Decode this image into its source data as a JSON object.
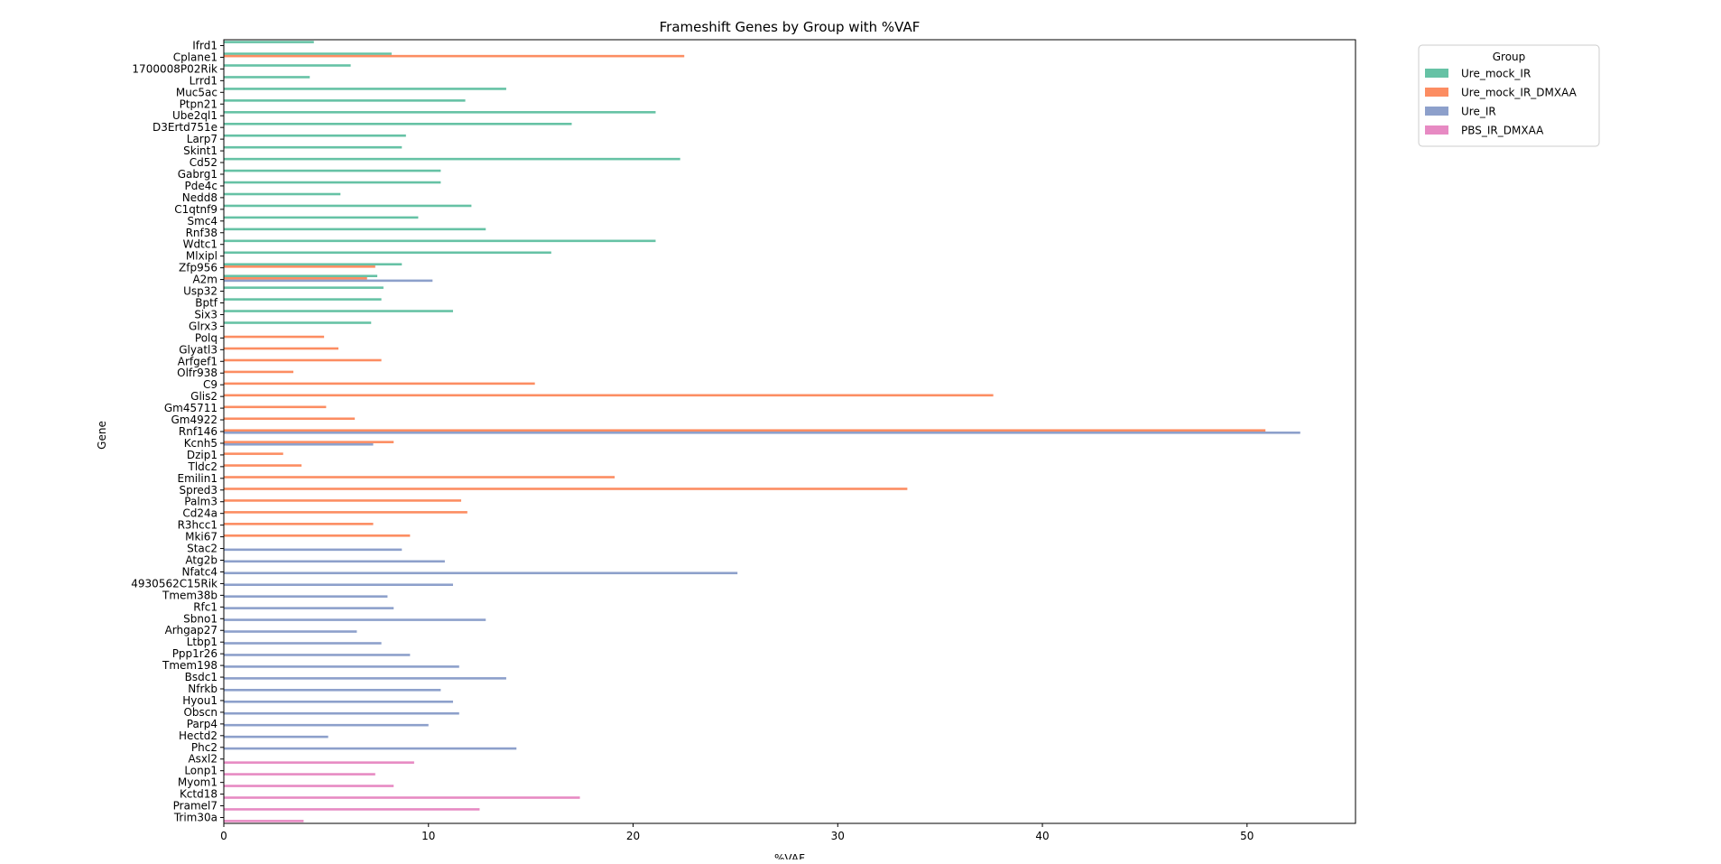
{
  "chart_data": {
    "type": "bar",
    "orientation": "horizontal",
    "title": "Frameshift Genes by Group with %VAF",
    "xlabel": "%VAF",
    "ylabel": "Gene",
    "xlim": [
      0,
      55.3
    ],
    "xticks": [
      0,
      10,
      20,
      30,
      40,
      50
    ],
    "grid": false,
    "legend": {
      "title": "Group",
      "position": "outside-top-right"
    },
    "groups": [
      {
        "name": "Ure_mock_IR",
        "color": "#66c2a5"
      },
      {
        "name": "Ure_mock_IR_DMXAA",
        "color": "#fc8d62"
      },
      {
        "name": "Ure_IR",
        "color": "#8da0cb"
      },
      {
        "name": "PBS_IR_DMXAA",
        "color": "#e78ac3"
      }
    ],
    "genes": [
      "Ifrd1",
      "Cplane1",
      "1700008P02Rik",
      "Lrrd1",
      "Muc5ac",
      "Ptpn21",
      "Ube2ql1",
      "D3Ertd751e",
      "Larp7",
      "Skint1",
      "Cd52",
      "Gabrg1",
      "Pde4c",
      "Nedd8",
      "C1qtnf9",
      "Smc4",
      "Rnf38",
      "Wdtc1",
      "Mlxipl",
      "Zfp956",
      "A2m",
      "Usp32",
      "Bptf",
      "Six3",
      "Glrx3",
      "Polq",
      "Glyatl3",
      "Arfgef1",
      "Olfr938",
      "C9",
      "Glis2",
      "Gm45711",
      "Gm4922",
      "Rnf146",
      "Kcnh5",
      "Dzip1",
      "Tldc2",
      "Emilin1",
      "Spred3",
      "Palm3",
      "Cd24a",
      "R3hcc1",
      "Mki67",
      "Stac2",
      "Atg2b",
      "Nfatc4",
      "4930562C15Rik",
      "Tmem38b",
      "Rfc1",
      "Sbno1",
      "Arhgap27",
      "Ltbp1",
      "Ppp1r26",
      "Tmem198",
      "Bsdc1",
      "Nfrkb",
      "Hyou1",
      "Obscn",
      "Parp4",
      "Hectd2",
      "Phc2",
      "Asxl2",
      "Lonp1",
      "Myom1",
      "Kctd18",
      "Pramel7",
      "Trim30a"
    ],
    "series": [
      {
        "name": "Ure_mock_IR",
        "values": [
          4.4,
          8.2,
          6.2,
          4.2,
          13.8,
          11.8,
          21.1,
          17.0,
          8.9,
          8.7,
          22.3,
          10.6,
          10.6,
          5.7,
          12.1,
          9.5,
          12.8,
          21.1,
          16.0,
          8.7,
          7.5,
          7.8,
          7.7,
          11.2,
          7.2,
          null,
          null,
          null,
          null,
          null,
          null,
          null,
          null,
          null,
          null,
          null,
          null,
          null,
          null,
          null,
          null,
          null,
          null,
          null,
          null,
          null,
          null,
          null,
          null,
          null,
          null,
          null,
          null,
          null,
          null,
          null,
          null,
          null,
          null,
          null,
          null,
          null,
          null,
          null,
          null,
          null,
          null
        ]
      },
      {
        "name": "Ure_mock_IR_DMXAA",
        "values": [
          null,
          22.5,
          null,
          null,
          null,
          null,
          null,
          null,
          null,
          null,
          null,
          null,
          null,
          null,
          null,
          null,
          null,
          null,
          null,
          7.4,
          7.0,
          null,
          null,
          null,
          null,
          4.9,
          5.6,
          7.7,
          3.4,
          15.2,
          37.6,
          5.0,
          6.4,
          50.9,
          8.3,
          2.9,
          3.8,
          19.1,
          33.4,
          11.6,
          11.9,
          7.3,
          9.1,
          null,
          null,
          null,
          null,
          null,
          null,
          null,
          null,
          null,
          null,
          null,
          null,
          null,
          null,
          null,
          null,
          null,
          null,
          null,
          null,
          null,
          null,
          null,
          null
        ]
      },
      {
        "name": "Ure_IR",
        "values": [
          null,
          null,
          null,
          null,
          null,
          null,
          null,
          null,
          null,
          null,
          null,
          null,
          null,
          null,
          null,
          null,
          null,
          null,
          null,
          null,
          10.2,
          null,
          null,
          null,
          null,
          null,
          null,
          null,
          null,
          null,
          null,
          null,
          null,
          52.6,
          7.3,
          null,
          null,
          null,
          null,
          null,
          null,
          null,
          null,
          8.7,
          10.8,
          25.1,
          11.2,
          8.0,
          8.3,
          12.8,
          6.5,
          7.7,
          9.1,
          11.5,
          13.8,
          10.6,
          11.2,
          11.5,
          10.0,
          5.1,
          14.3,
          null,
          null,
          null,
          null,
          null,
          null
        ]
      },
      {
        "name": "PBS_IR_DMXAA",
        "values": [
          null,
          null,
          null,
          null,
          null,
          null,
          null,
          null,
          null,
          null,
          null,
          null,
          null,
          null,
          null,
          null,
          null,
          null,
          null,
          null,
          null,
          null,
          null,
          null,
          null,
          null,
          null,
          null,
          null,
          null,
          null,
          null,
          null,
          null,
          null,
          null,
          null,
          null,
          null,
          null,
          null,
          null,
          null,
          null,
          null,
          null,
          null,
          null,
          null,
          null,
          null,
          null,
          null,
          null,
          null,
          null,
          null,
          null,
          null,
          null,
          null,
          9.3,
          7.4,
          8.3,
          17.4,
          12.5,
          3.9
        ]
      }
    ]
  }
}
